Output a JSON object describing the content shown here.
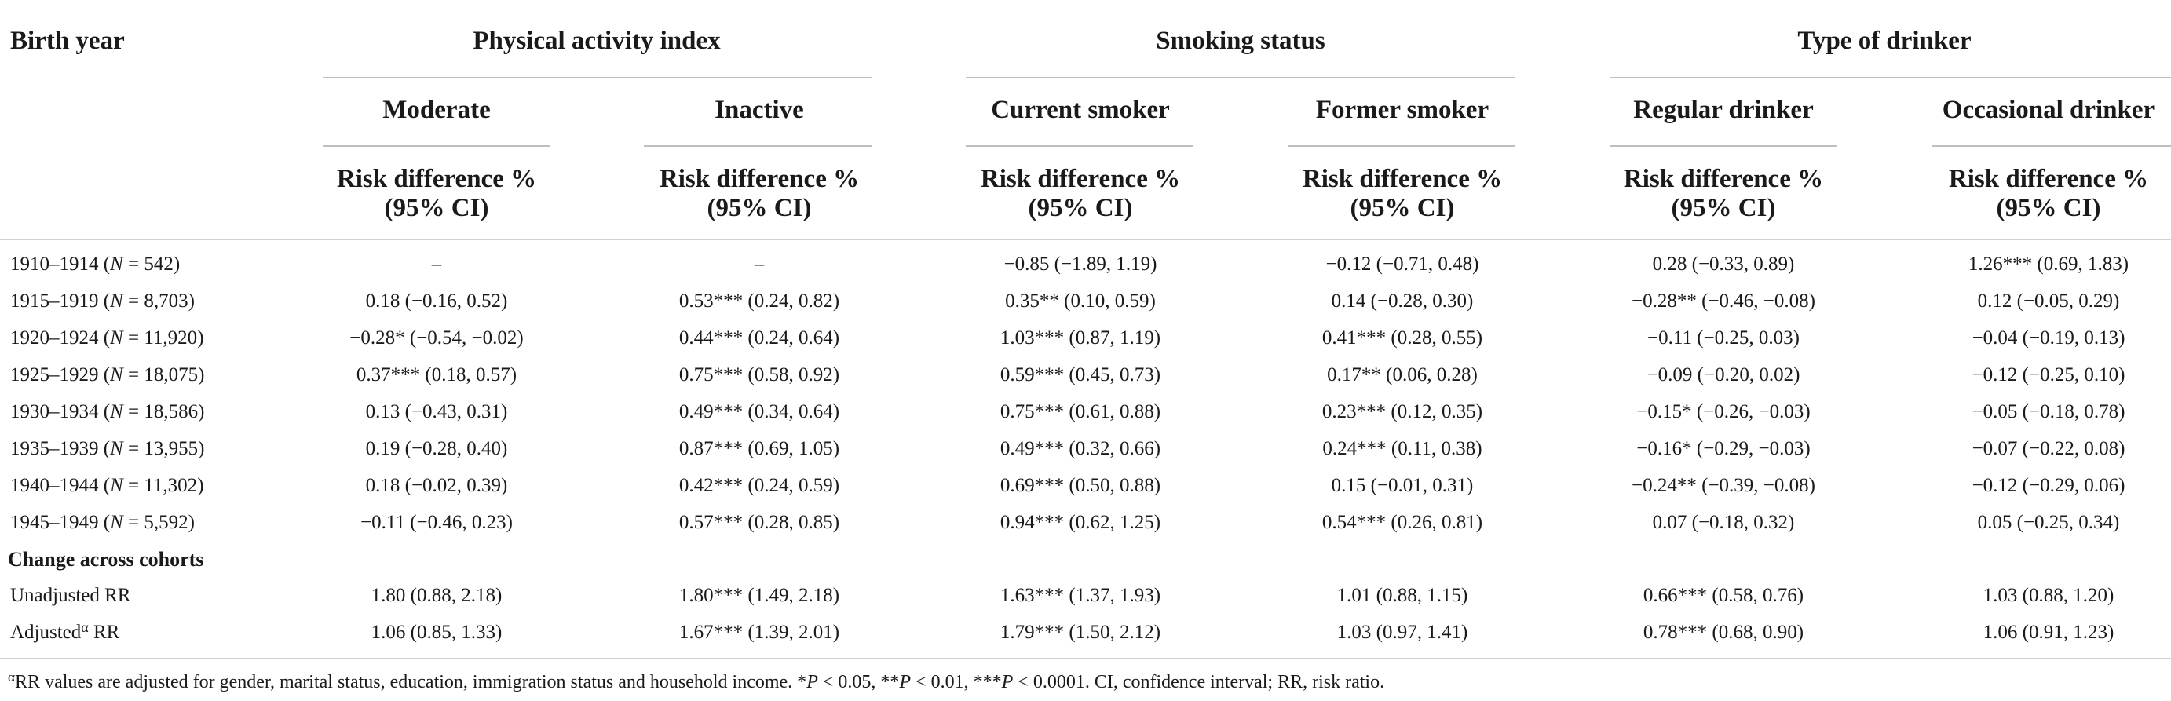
{
  "header": {
    "stub_label": "Birth year",
    "groups": [
      "Physical activity index",
      "Smoking status",
      "Type of drinker"
    ],
    "subcolumns": [
      "Moderate",
      "Inactive",
      "Current smoker",
      "Former smoker",
      "Regular drinker",
      "Occasional drinker"
    ],
    "metric_line1": "Risk difference %",
    "metric_line2": "(95% CI)"
  },
  "rows": [
    {
      "year": "1910–1914",
      "n_prefix": "N",
      "n_value": " = 542",
      "cells": [
        "–",
        "–",
        "−0.85 (−1.89, 1.19)",
        "−0.12 (−0.71, 0.48)",
        "0.28 (−0.33, 0.89)",
        "1.26*** (0.69, 1.83)"
      ]
    },
    {
      "year": "1915–1919",
      "n_prefix": "N",
      "n_value": " = 8,703",
      "cells": [
        "0.18 (−0.16, 0.52)",
        "0.53*** (0.24, 0.82)",
        "0.35** (0.10, 0.59)",
        "0.14 (−0.28, 0.30)",
        "−0.28** (−0.46, −0.08)",
        "0.12 (−0.05, 0.29)"
      ]
    },
    {
      "year": "1920–1924",
      "n_prefix": "N",
      "n_value": " = 11,920",
      "cells": [
        "−0.28* (−0.54, −0.02)",
        "0.44*** (0.24, 0.64)",
        "1.03*** (0.87, 1.19)",
        "0.41*** (0.28, 0.55)",
        "−0.11 (−0.25, 0.03)",
        "−0.04 (−0.19, 0.13)"
      ]
    },
    {
      "year": "1925–1929",
      "n_prefix": "N",
      "n_value": " = 18,075",
      "cells": [
        "0.37*** (0.18, 0.57)",
        "0.75*** (0.58, 0.92)",
        "0.59*** (0.45, 0.73)",
        "0.17** (0.06, 0.28)",
        "−0.09 (−0.20, 0.02)",
        "−0.12 (−0.25, 0.10)"
      ]
    },
    {
      "year": "1930–1934",
      "n_prefix": "N",
      "n_value": " = 18,586",
      "cells": [
        "0.13 (−0.43, 0.31)",
        "0.49*** (0.34, 0.64)",
        "0.75*** (0.61, 0.88)",
        "0.23*** (0.12, 0.35)",
        "−0.15* (−0.26, −0.03)",
        "−0.05 (−0.18, 0.78)"
      ]
    },
    {
      "year": "1935–1939",
      "n_prefix": "N",
      "n_value": " = 13,955",
      "cells": [
        "0.19 (−0.28, 0.40)",
        "0.87*** (0.69, 1.05)",
        "0.49*** (0.32, 0.66)",
        "0.24*** (0.11, 0.38)",
        "−0.16* (−0.29, −0.03)",
        "−0.07 (−0.22, 0.08)"
      ]
    },
    {
      "year": "1940–1944",
      "n_prefix": "N",
      "n_value": " = 11,302",
      "cells": [
        "0.18 (−0.02, 0.39)",
        "0.42*** (0.24, 0.59)",
        "0.69*** (0.50, 0.88)",
        "0.15 (−0.01, 0.31)",
        "−0.24** (−0.39, −0.08)",
        "−0.12 (−0.29, 0.06)"
      ]
    },
    {
      "year": "1945–1949",
      "n_prefix": "N",
      "n_value": " = 5,592",
      "cells": [
        "−0.11 (−0.46, 0.23)",
        "0.57*** (0.28, 0.85)",
        "0.94*** (0.62, 1.25)",
        "0.54*** (0.26, 0.81)",
        "0.07 (−0.18, 0.32)",
        "0.05 (−0.25, 0.34)"
      ]
    }
  ],
  "section_label": "Change across cohorts",
  "summary_rows": [
    {
      "label_a": "Unadjusted RR",
      "sup": "",
      "label_b": "",
      "cells": [
        "1.80 (0.88, 2.18)",
        "1.80*** (1.49, 2.18)",
        "1.63*** (1.37, 1.93)",
        "1.01 (0.88, 1.15)",
        "0.66*** (0.58, 0.76)",
        "1.03 (0.88, 1.20)"
      ]
    },
    {
      "label_a": "Adjusted",
      "sup": "α",
      "label_b": " RR",
      "cells": [
        "1.06 (0.85, 1.33)",
        "1.67*** (1.39, 2.01)",
        "1.79*** (1.50, 2.12)",
        "1.03 (0.97, 1.41)",
        "0.78*** (0.68, 0.90)",
        "1.06 (0.91, 1.23)"
      ]
    }
  ],
  "footnote": {
    "sup": "α",
    "t1": "RR values are adjusted for gender, marital status, education, immigration status and household income. *",
    "p": "P",
    "t2": " < 0.05, **",
    "t3": " < 0.01, ***",
    "t4": " < 0.0001. CI, confidence interval; RR, risk ratio."
  }
}
